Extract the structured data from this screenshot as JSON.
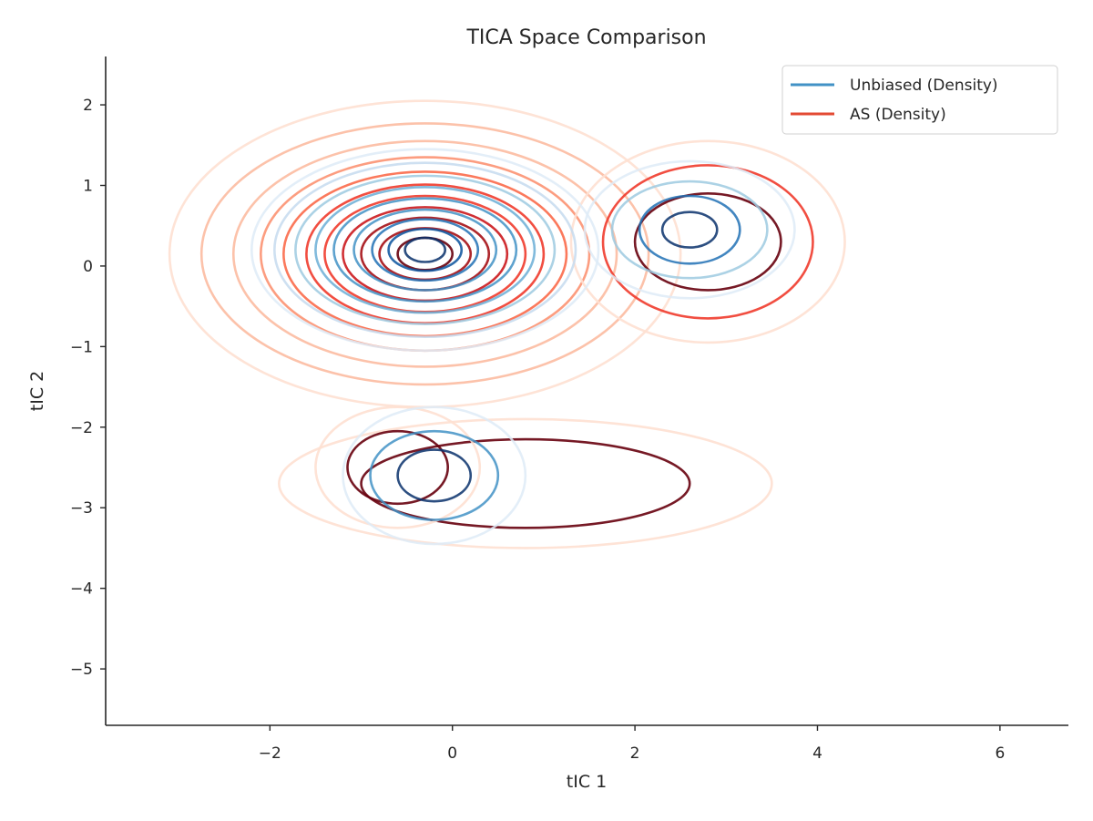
{
  "chart_data": {
    "type": "contour",
    "title": "TICA Space Comparison",
    "xlabel": "tIC 1",
    "ylabel": "tIC 2",
    "xlim": [
      -3.8,
      6.75
    ],
    "ylim": [
      -5.7,
      2.6
    ],
    "xticks": [
      -2,
      0,
      2,
      4,
      6
    ],
    "yticks": [
      -5,
      -4,
      -3,
      -2,
      -1,
      0,
      1,
      2
    ],
    "xtick_labels": [
      "−2",
      "0",
      "2",
      "4",
      "6"
    ],
    "ytick_labels": [
      "−5",
      "−4",
      "−3",
      "−2",
      "−1",
      "0",
      "1",
      "2"
    ],
    "grid": false,
    "legend_position": "top-right",
    "series": [
      {
        "name": "Unbiased (Density)",
        "legend_color": "#4292c6",
        "level_colors": [
          "#deebf7",
          "#c6dbef",
          "#9ecae1",
          "#6baed6",
          "#4292c6",
          "#2171b5",
          "#08519c",
          "#08306b"
        ],
        "modes": [
          {
            "cx": -0.3,
            "cy": 0.2,
            "rx": [
              1.9,
              1.65,
              1.42,
              1.2,
              1.0,
              0.78,
              0.58,
              0.4,
              0.22
            ],
            "ry": [
              1.25,
              1.08,
              0.92,
              0.78,
              0.64,
              0.5,
              0.38,
              0.26,
              0.15
            ]
          },
          {
            "cx": 2.6,
            "cy": 0.45,
            "rx": [
              1.15,
              0.85,
              0.55,
              0.3
            ],
            "ry": [
              0.85,
              0.6,
              0.42,
              0.22
            ]
          },
          {
            "cx": -0.2,
            "cy": -2.6,
            "rx": [
              1.0,
              0.7,
              0.4
            ],
            "ry": [
              0.85,
              0.55,
              0.32
            ]
          }
        ]
      },
      {
        "name": "AS (Density)",
        "legend_color": "#e34a33",
        "level_colors": [
          "#fee0d2",
          "#fcbba1",
          "#fc9272",
          "#fb6a4a",
          "#ef3b2c",
          "#cb181d",
          "#a50f15",
          "#67000d"
        ],
        "modes": [
          {
            "cx": -0.3,
            "cy": 0.15,
            "rx": [
              2.8,
              2.45,
              2.1,
              1.8,
              1.55,
              1.3,
              1.1,
              0.9,
              0.7,
              0.5,
              0.3
            ],
            "ry": [
              1.9,
              1.62,
              1.4,
              1.2,
              1.02,
              0.86,
              0.72,
              0.58,
              0.45,
              0.32,
              0.2
            ]
          },
          {
            "cx": 2.8,
            "cy": 0.3,
            "rx": [
              1.5,
              1.15,
              0.8
            ],
            "ry": [
              1.25,
              0.95,
              0.6
            ]
          },
          {
            "cx": 0.8,
            "cy": -2.7,
            "rx": [
              2.7,
              1.8
            ],
            "ry": [
              0.8,
              0.55
            ]
          },
          {
            "cx": -0.6,
            "cy": -2.5,
            "rx": [
              0.9,
              0.55
            ],
            "ry": [
              0.75,
              0.45
            ]
          }
        ]
      }
    ]
  }
}
